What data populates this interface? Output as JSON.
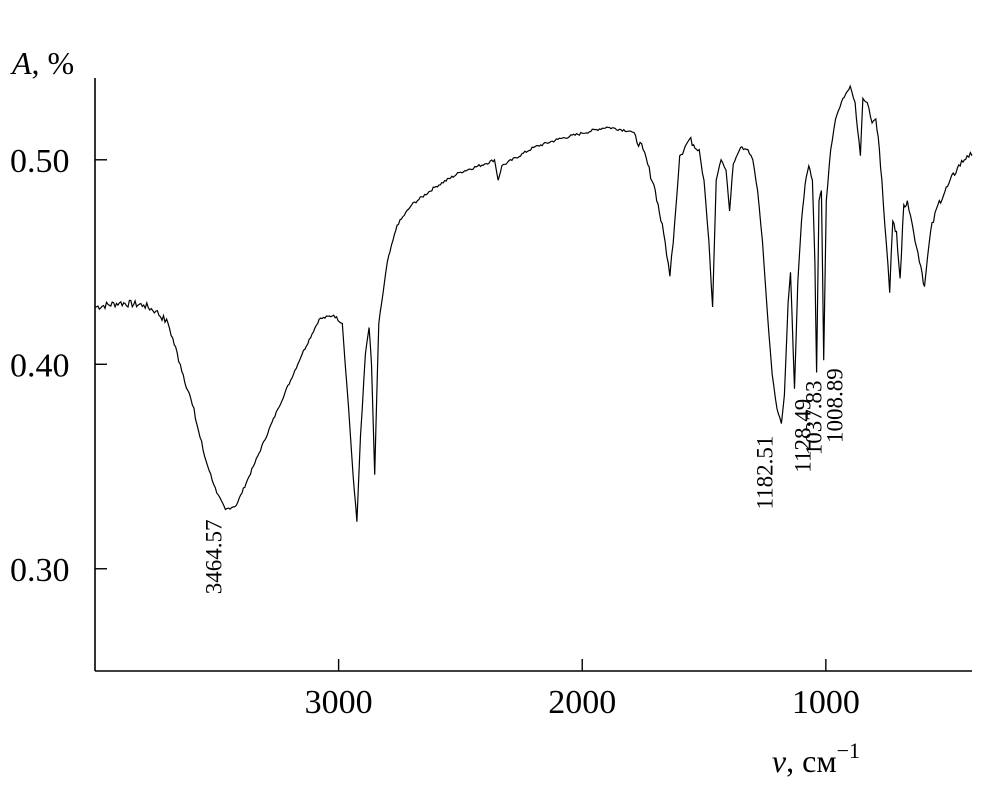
{
  "chart_data": {
    "type": "line",
    "title": "",
    "xlabel": "ν, см⁻¹",
    "ylabel": "A, %",
    "x_reversed": true,
    "xlim": [
      4000,
      400
    ],
    "ylim": [
      0.25,
      0.54
    ],
    "grid": false,
    "x_ticks": [
      {
        "value": 3000,
        "label": "3000"
      },
      {
        "value": 2000,
        "label": "2000"
      },
      {
        "value": 1000,
        "label": "1000"
      }
    ],
    "y_ticks": [
      {
        "value": 0.5,
        "label": "0.50"
      },
      {
        "value": 0.4,
        "label": "0.40"
      },
      {
        "value": 0.3,
        "label": "0.30"
      }
    ],
    "annotations": [
      {
        "text": "3464.57",
        "x": 3464.57,
        "y": 0.329
      },
      {
        "text": "1182.51",
        "x": 1182.51,
        "y": 0.371
      },
      {
        "text": "1128.49",
        "x": 1128.49,
        "y": 0.388
      },
      {
        "text": "1037.83",
        "x": 1037.83,
        "y": 0.396
      },
      {
        "text": "1008.89",
        "x": 1008.89,
        "y": 0.402
      }
    ],
    "series": [
      {
        "points": [
          [
            4000,
            0.428
          ],
          [
            3900,
            0.43
          ],
          [
            3800,
            0.429
          ],
          [
            3750,
            0.426
          ],
          [
            3700,
            0.42
          ],
          [
            3650,
            0.4
          ],
          [
            3600,
            0.38
          ],
          [
            3550,
            0.355
          ],
          [
            3500,
            0.337
          ],
          [
            3464.57,
            0.329
          ],
          [
            3420,
            0.331
          ],
          [
            3350,
            0.35
          ],
          [
            3250,
            0.378
          ],
          [
            3150,
            0.405
          ],
          [
            3080,
            0.422
          ],
          [
            3020,
            0.424
          ],
          [
            2985,
            0.42
          ],
          [
            2960,
            0.38
          ],
          [
            2940,
            0.345
          ],
          [
            2925,
            0.323
          ],
          [
            2910,
            0.365
          ],
          [
            2890,
            0.405
          ],
          [
            2875,
            0.418
          ],
          [
            2865,
            0.4
          ],
          [
            2852,
            0.346
          ],
          [
            2835,
            0.42
          ],
          [
            2800,
            0.45
          ],
          [
            2760,
            0.468
          ],
          [
            2700,
            0.478
          ],
          [
            2600,
            0.487
          ],
          [
            2500,
            0.494
          ],
          [
            2400,
            0.498
          ],
          [
            2360,
            0.5
          ],
          [
            2345,
            0.49
          ],
          [
            2330,
            0.497
          ],
          [
            2200,
            0.506
          ],
          [
            2100,
            0.51
          ],
          [
            2000,
            0.513
          ],
          [
            1900,
            0.516
          ],
          [
            1800,
            0.514
          ],
          [
            1750,
            0.505
          ],
          [
            1700,
            0.485
          ],
          [
            1660,
            0.46
          ],
          [
            1640,
            0.443
          ],
          [
            1620,
            0.47
          ],
          [
            1600,
            0.502
          ],
          [
            1560,
            0.51
          ],
          [
            1520,
            0.505
          ],
          [
            1500,
            0.49
          ],
          [
            1480,
            0.46
          ],
          [
            1465,
            0.428
          ],
          [
            1450,
            0.49
          ],
          [
            1430,
            0.5
          ],
          [
            1410,
            0.495
          ],
          [
            1395,
            0.475
          ],
          [
            1380,
            0.498
          ],
          [
            1350,
            0.506
          ],
          [
            1320,
            0.505
          ],
          [
            1300,
            0.5
          ],
          [
            1280,
            0.485
          ],
          [
            1260,
            0.46
          ],
          [
            1240,
            0.425
          ],
          [
            1220,
            0.395
          ],
          [
            1200,
            0.378
          ],
          [
            1182.51,
            0.371
          ],
          [
            1170,
            0.385
          ],
          [
            1155,
            0.43
          ],
          [
            1145,
            0.445
          ],
          [
            1128.49,
            0.388
          ],
          [
            1115,
            0.44
          ],
          [
            1100,
            0.47
          ],
          [
            1085,
            0.488
          ],
          [
            1070,
            0.497
          ],
          [
            1055,
            0.49
          ],
          [
            1045,
            0.45
          ],
          [
            1037.83,
            0.396
          ],
          [
            1028,
            0.48
          ],
          [
            1018,
            0.485
          ],
          [
            1008.89,
            0.402
          ],
          [
            998,
            0.48
          ],
          [
            980,
            0.505
          ],
          [
            960,
            0.52
          ],
          [
            930,
            0.53
          ],
          [
            900,
            0.536
          ],
          [
            880,
            0.528
          ],
          [
            870,
            0.515
          ],
          [
            858,
            0.502
          ],
          [
            848,
            0.53
          ],
          [
            830,
            0.528
          ],
          [
            810,
            0.518
          ],
          [
            795,
            0.52
          ],
          [
            780,
            0.505
          ],
          [
            770,
            0.49
          ],
          [
            752,
            0.46
          ],
          [
            738,
            0.435
          ],
          [
            725,
            0.47
          ],
          [
            710,
            0.465
          ],
          [
            695,
            0.442
          ],
          [
            680,
            0.478
          ],
          [
            665,
            0.48
          ],
          [
            640,
            0.465
          ],
          [
            610,
            0.448
          ],
          [
            595,
            0.438
          ],
          [
            570,
            0.465
          ],
          [
            540,
            0.478
          ],
          [
            500,
            0.487
          ],
          [
            460,
            0.496
          ],
          [
            420,
            0.502
          ],
          [
            400,
            0.502
          ]
        ]
      }
    ]
  }
}
